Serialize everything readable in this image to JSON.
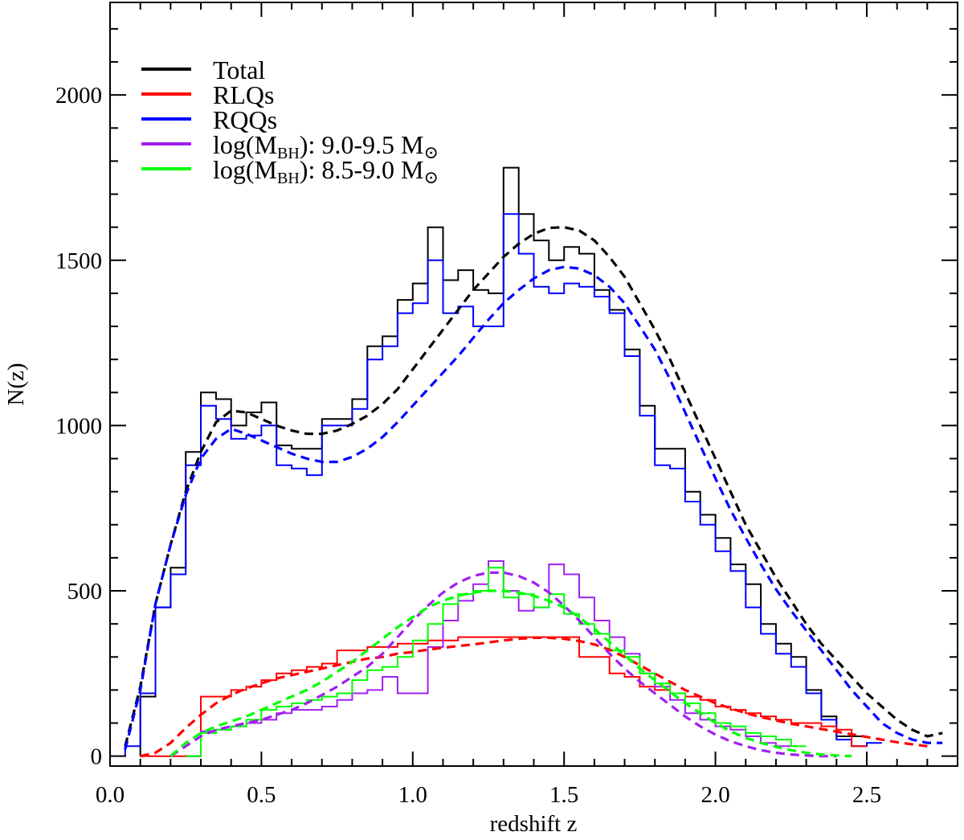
{
  "chart_data": {
    "type": "line",
    "xlabel": "redshift z",
    "ylabel": "N(z)",
    "xlim": [
      0.0,
      2.8
    ],
    "ylim": [
      -30,
      2280
    ],
    "x_ticks": [
      0.0,
      0.5,
      1.0,
      1.5,
      2.0,
      2.5
    ],
    "x_tick_labels": [
      "0.0",
      "0.5",
      "1.0",
      "1.5",
      "2.0",
      "2.5"
    ],
    "x_minor_step": 0.1,
    "y_ticks": [
      0,
      500,
      1000,
      1500,
      2000
    ],
    "y_tick_labels": [
      "0",
      "500",
      "1000",
      "1500",
      "2000"
    ],
    "y_minor_step": 100,
    "grid": false,
    "legend_position": "top-left",
    "bin_width": 0.05,
    "legend": [
      {
        "series": "total",
        "name": "Total",
        "color": "#000000"
      },
      {
        "series": "rlq",
        "name": "RLQs",
        "color": "#ff0000"
      },
      {
        "series": "rqq",
        "name": "RQQs",
        "color": "#0000ff"
      },
      {
        "series": "mbh_high",
        "prefix": "log(M",
        "sub": "BH",
        "suffix": "): 9.0-9.5 M",
        "sym": "⊙",
        "color": "#a020f0"
      },
      {
        "series": "mbh_low",
        "prefix": "log(M",
        "sub": "BH",
        "suffix": "): 8.5-9.0 M",
        "sym": "⊙",
        "color": "#00ff00"
      }
    ],
    "series": [
      {
        "id": "total",
        "color": "#000000",
        "hist_start": 0.1,
        "hist": [
          180,
          450,
          570,
          920,
          1100,
          1080,
          1000,
          1040,
          1070,
          940,
          930,
          930,
          1020,
          1020,
          1080,
          1240,
          1270,
          1380,
          1430,
          1600,
          1440,
          1470,
          1410,
          1400,
          1780,
          1640,
          1560,
          1500,
          1540,
          1520,
          1410,
          1350,
          1230,
          1060,
          930,
          930,
          800,
          730,
          660,
          580,
          520,
          400,
          340,
          300,
          200,
          120,
          60,
          60
        ],
        "fit_x": [
          0.05,
          0.1,
          0.15,
          0.2,
          0.25,
          0.3,
          0.35,
          0.4,
          0.45,
          0.5,
          0.55,
          0.6,
          0.65,
          0.7,
          0.75,
          0.8,
          0.85,
          0.9,
          0.95,
          1.0,
          1.05,
          1.1,
          1.15,
          1.2,
          1.25,
          1.3,
          1.35,
          1.4,
          1.45,
          1.5,
          1.55,
          1.6,
          1.65,
          1.7,
          1.75,
          1.8,
          1.85,
          1.9,
          1.95,
          2.0,
          2.05,
          2.1,
          2.15,
          2.2,
          2.25,
          2.3,
          2.35,
          2.4,
          2.45,
          2.5,
          2.55,
          2.6,
          2.65,
          2.7,
          2.75
        ],
        "fit_y": [
          30,
          210,
          460,
          640,
          800,
          920,
          1010,
          1045,
          1040,
          1020,
          1000,
          985,
          975,
          975,
          985,
          1005,
          1030,
          1065,
          1110,
          1170,
          1230,
          1290,
          1350,
          1410,
          1460,
          1510,
          1550,
          1580,
          1598,
          1600,
          1590,
          1560,
          1510,
          1450,
          1370,
          1290,
          1200,
          1100,
          1000,
          900,
          800,
          700,
          620,
          540,
          470,
          400,
          340,
          290,
          240,
          190,
          150,
          110,
          80,
          60,
          70
        ]
      },
      {
        "id": "rqq",
        "color": "#0000ff",
        "hist_start": 0.05,
        "hist": [
          30,
          190,
          450,
          550,
          880,
          1060,
          1020,
          960,
          970,
          1000,
          880,
          870,
          850,
          1000,
          1000,
          1050,
          1200,
          1240,
          1340,
          1370,
          1500,
          1340,
          1360,
          1300,
          1300,
          1640,
          1520,
          1420,
          1400,
          1430,
          1420,
          1390,
          1340,
          1210,
          1030,
          880,
          870,
          770,
          700,
          620,
          560,
          450,
          370,
          310,
          270,
          190,
          110,
          50,
          30,
          40
        ],
        "fit_x": [
          0.05,
          0.1,
          0.15,
          0.2,
          0.25,
          0.3,
          0.35,
          0.4,
          0.45,
          0.5,
          0.55,
          0.6,
          0.65,
          0.7,
          0.75,
          0.8,
          0.85,
          0.9,
          0.95,
          1.0,
          1.05,
          1.1,
          1.15,
          1.2,
          1.25,
          1.3,
          1.35,
          1.4,
          1.45,
          1.5,
          1.55,
          1.6,
          1.65,
          1.7,
          1.75,
          1.8,
          1.85,
          1.9,
          1.95,
          2.0,
          2.05,
          2.1,
          2.15,
          2.2,
          2.25,
          2.3,
          2.35,
          2.4,
          2.45,
          2.5,
          2.55,
          2.6,
          2.65,
          2.7,
          2.75
        ],
        "fit_y": [
          20,
          200,
          460,
          640,
          790,
          900,
          960,
          990,
          975,
          955,
          935,
          915,
          900,
          890,
          890,
          905,
          930,
          965,
          1010,
          1060,
          1110,
          1160,
          1210,
          1265,
          1320,
          1370,
          1410,
          1445,
          1470,
          1480,
          1475,
          1455,
          1420,
          1370,
          1300,
          1230,
          1140,
          1040,
          940,
          840,
          745,
          660,
          580,
          505,
          440,
          380,
          320,
          260,
          200,
          150,
          100,
          70,
          50,
          40,
          40
        ]
      },
      {
        "id": "rlq",
        "color": "#ff0000",
        "hist_start": 0.1,
        "hist": [
          0,
          0,
          0,
          0,
          180,
          180,
          200,
          210,
          230,
          250,
          260,
          270,
          280,
          320,
          320,
          330,
          330,
          340,
          340,
          350,
          350,
          360,
          360,
          360,
          360,
          360,
          360,
          360,
          360,
          300,
          300,
          250,
          240,
          210,
          200,
          190,
          180,
          170,
          150,
          140,
          130,
          120,
          110,
          100,
          100,
          90,
          80,
          30
        ],
        "fit_x": [
          0.1,
          0.15,
          0.2,
          0.25,
          0.3,
          0.35,
          0.4,
          0.45,
          0.5,
          0.55,
          0.6,
          0.65,
          0.7,
          0.75,
          0.8,
          0.85,
          0.9,
          0.95,
          1.0,
          1.05,
          1.1,
          1.15,
          1.2,
          1.25,
          1.3,
          1.35,
          1.4,
          1.45,
          1.5,
          1.55,
          1.6,
          1.65,
          1.7,
          1.75,
          1.8,
          1.85,
          1.9,
          1.95,
          2.0,
          2.05,
          2.1,
          2.15,
          2.2,
          2.25,
          2.3,
          2.35,
          2.4,
          2.45,
          2.5,
          2.55,
          2.6,
          2.65,
          2.7
        ],
        "fit_y": [
          0,
          10,
          40,
          85,
          125,
          160,
          185,
          205,
          220,
          235,
          245,
          255,
          265,
          275,
          285,
          295,
          300,
          310,
          315,
          322,
          328,
          333,
          338,
          344,
          350,
          355,
          358,
          358,
          355,
          348,
          338,
          322,
          300,
          275,
          250,
          225,
          200,
          180,
          160,
          145,
          130,
          118,
          108,
          98,
          90,
          82,
          74,
          66,
          58,
          50,
          42,
          36,
          30
        ]
      },
      {
        "id": "mbh_high",
        "color": "#a020f0",
        "hist_start": 0.25,
        "hist": [
          0,
          75,
          80,
          90,
          100,
          110,
          130,
          140,
          140,
          150,
          170,
          190,
          200,
          240,
          190,
          190,
          330,
          410,
          470,
          520,
          590,
          500,
          440,
          450,
          580,
          550,
          480,
          410,
          360,
          310,
          250,
          210,
          170,
          130,
          110,
          90,
          80,
          60,
          40,
          30
        ],
        "fit_x": [
          0.2,
          0.25,
          0.3,
          0.35,
          0.4,
          0.45,
          0.5,
          0.55,
          0.6,
          0.65,
          0.7,
          0.75,
          0.8,
          0.85,
          0.9,
          0.95,
          1.0,
          1.05,
          1.1,
          1.15,
          1.2,
          1.25,
          1.3,
          1.35,
          1.4,
          1.45,
          1.5,
          1.55,
          1.6,
          1.65,
          1.7,
          1.75,
          1.8,
          1.85,
          1.9,
          1.95,
          2.0,
          2.05,
          2.1,
          2.15,
          2.2,
          2.25,
          2.3,
          2.35,
          2.4
        ],
        "fit_y": [
          0,
          30,
          60,
          80,
          90,
          100,
          110,
          125,
          140,
          160,
          185,
          210,
          240,
          270,
          310,
          360,
          410,
          455,
          495,
          525,
          545,
          555,
          555,
          545,
          525,
          495,
          455,
          410,
          360,
          310,
          265,
          225,
          190,
          155,
          120,
          90,
          65,
          45,
          30,
          18,
          10,
          5,
          2,
          0,
          0
        ]
      },
      {
        "id": "mbh_low",
        "color": "#00ff00",
        "hist_start": 0.25,
        "hist": [
          0,
          70,
          80,
          90,
          110,
          140,
          150,
          160,
          170,
          180,
          190,
          230,
          260,
          270,
          300,
          350,
          400,
          460,
          490,
          500,
          570,
          480,
          490,
          450,
          490,
          430,
          400,
          370,
          320,
          300,
          250,
          220,
          190,
          160,
          130,
          100,
          90,
          70,
          60,
          50,
          30
        ],
        "fit_x": [
          0.2,
          0.25,
          0.3,
          0.35,
          0.4,
          0.45,
          0.5,
          0.55,
          0.6,
          0.65,
          0.7,
          0.75,
          0.8,
          0.85,
          0.9,
          0.95,
          1.0,
          1.05,
          1.1,
          1.15,
          1.2,
          1.25,
          1.3,
          1.35,
          1.4,
          1.45,
          1.5,
          1.55,
          1.6,
          1.65,
          1.7,
          1.75,
          1.8,
          1.85,
          1.9,
          1.95,
          2.0,
          2.05,
          2.1,
          2.15,
          2.2,
          2.25,
          2.3,
          2.35,
          2.4,
          2.45
        ],
        "fit_y": [
          0,
          40,
          70,
          90,
          105,
          120,
          140,
          160,
          180,
          200,
          225,
          255,
          285,
          320,
          355,
          390,
          420,
          450,
          470,
          485,
          495,
          500,
          500,
          495,
          485,
          470,
          450,
          420,
          385,
          345,
          305,
          265,
          230,
          195,
          160,
          130,
          100,
          75,
          55,
          40,
          28,
          18,
          10,
          5,
          2,
          0
        ]
      }
    ]
  }
}
